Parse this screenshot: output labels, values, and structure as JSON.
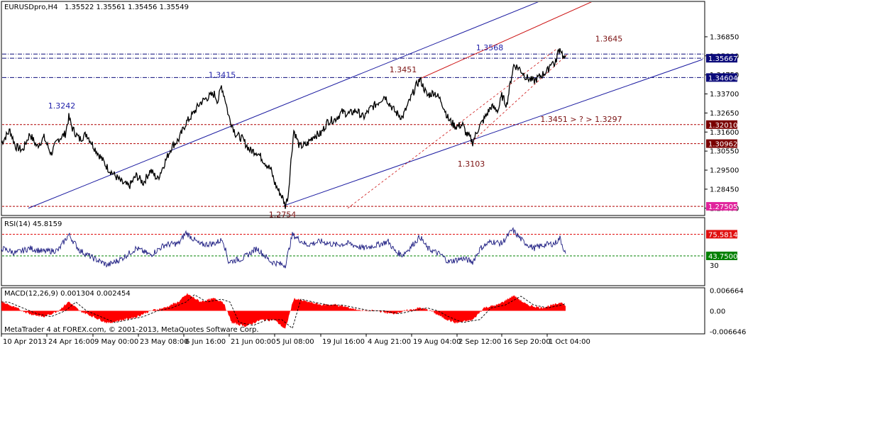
{
  "header": {
    "symbol": "EURUSDpro,H4",
    "quote": "1.35522 1.35561 1.35456 1.35549"
  },
  "footer": {
    "copyright": "MetaTrader 4 at FOREX.com, © 2001-2013, MetaQuotes Software Corp."
  },
  "colors": {
    "price_line": "#000000",
    "trend_blue": "#1a1aa0",
    "trend_red": "#cc1111",
    "hline_red": "#b00000",
    "tag_navy": "#0a0a7a",
    "tag_darkred": "#7a0000",
    "tag_magenta": "#e0249c",
    "tag_red": "#e01010",
    "tag_green": "#008000",
    "macd_fill": "#ff0000"
  },
  "chart_data": [
    {
      "type": "line",
      "name": "main",
      "ylim": [
        1.27,
        1.388
      ],
      "y_ticks": [
        "1.36850",
        "1.35800",
        "1.34750",
        "1.33700",
        "1.32650",
        "1.31600",
        "1.30550",
        "1.29500",
        "1.28450",
        "1.27400"
      ],
      "x_labels": [
        "10 Apr 2013",
        "24 Apr 16:00",
        "9 May 00:00",
        "23 May 08:00",
        "6 Jun 16:00",
        "21 Jun 00:00",
        "5 Jul 08:00",
        "19 Jul 16:00",
        "4 Aug 21:00",
        "19 Aug 04:00",
        "2 Sep 12:00",
        "16 Sep 20:00",
        "1 Oct 04:00"
      ],
      "price_anchors": [
        [
          0,
          1.31
        ],
        [
          12,
          1.317
        ],
        [
          20,
          1.308
        ],
        [
          30,
          1.306
        ],
        [
          40,
          1.315
        ],
        [
          50,
          1.308
        ],
        [
          60,
          1.313
        ],
        [
          70,
          1.304
        ],
        [
          80,
          1.312
        ],
        [
          90,
          1.315
        ],
        [
          95,
          1.3242
        ],
        [
          100,
          1.318
        ],
        [
          110,
          1.312
        ],
        [
          120,
          1.315
        ],
        [
          130,
          1.308
        ],
        [
          140,
          1.302
        ],
        [
          150,
          1.296
        ],
        [
          160,
          1.292
        ],
        [
          170,
          1.288
        ],
        [
          180,
          1.286
        ],
        [
          190,
          1.292
        ],
        [
          200,
          1.288
        ],
        [
          210,
          1.295
        ],
        [
          220,
          1.29
        ],
        [
          230,
          1.299
        ],
        [
          240,
          1.308
        ],
        [
          250,
          1.312
        ],
        [
          260,
          1.321
        ],
        [
          270,
          1.326
        ],
        [
          280,
          1.332
        ],
        [
          290,
          1.335
        ],
        [
          300,
          1.337
        ],
        [
          305,
          1.333
        ],
        [
          310,
          1.3415
        ],
        [
          316,
          1.333
        ],
        [
          320,
          1.325
        ],
        [
          330,
          1.315
        ],
        [
          340,
          1.312
        ],
        [
          350,
          1.306
        ],
        [
          360,
          1.305
        ],
        [
          370,
          1.3
        ],
        [
          380,
          1.295
        ],
        [
          385,
          1.288
        ],
        [
          390,
          1.284
        ],
        [
          396,
          1.28
        ],
        [
          400,
          1.2754
        ],
        [
          404,
          1.281
        ],
        [
          408,
          1.3
        ],
        [
          412,
          1.317
        ],
        [
          420,
          1.308
        ],
        [
          430,
          1.309
        ],
        [
          440,
          1.314
        ],
        [
          450,
          1.315
        ],
        [
          460,
          1.322
        ],
        [
          470,
          1.323
        ],
        [
          480,
          1.327
        ],
        [
          490,
          1.326
        ],
        [
          500,
          1.328
        ],
        [
          510,
          1.324
        ],
        [
          520,
          1.329
        ],
        [
          530,
          1.332
        ],
        [
          540,
          1.336
        ],
        [
          548,
          1.331
        ],
        [
          555,
          1.327
        ],
        [
          565,
          1.324
        ],
        [
          575,
          1.333
        ],
        [
          585,
          1.342
        ],
        [
          590,
          1.3451
        ],
        [
          600,
          1.336
        ],
        [
          610,
          1.338
        ],
        [
          620,
          1.333
        ],
        [
          630,
          1.323
        ],
        [
          640,
          1.319
        ],
        [
          650,
          1.32
        ],
        [
          655,
          1.315
        ],
        [
          660,
          1.313
        ],
        [
          664,
          1.3103
        ],
        [
          672,
          1.318
        ],
        [
          680,
          1.323
        ],
        [
          690,
          1.33
        ],
        [
          700,
          1.328
        ],
        [
          705,
          1.336
        ],
        [
          712,
          1.331
        ],
        [
          718,
          1.345
        ],
        [
          722,
          1.353
        ],
        [
          730,
          1.351
        ],
        [
          740,
          1.346
        ],
        [
          750,
          1.344
        ],
        [
          760,
          1.347
        ],
        [
          770,
          1.35
        ],
        [
          775,
          1.355
        ],
        [
          780,
          1.353
        ],
        [
          785,
          1.361
        ],
        [
          788,
          1.362
        ],
        [
          792,
          1.357
        ],
        [
          795,
          1.3555
        ]
      ],
      "horizontal_lines": [
        {
          "price": 1.35667,
          "tag": "1.35667",
          "style": "navy"
        },
        {
          "price": 1.359,
          "tag": "",
          "style": "navy"
        },
        {
          "price": 1.34604,
          "tag": "1.34604",
          "style": "navy"
        },
        {
          "price": 1.3201,
          "tag": "1.32010",
          "style": "darkred"
        },
        {
          "price": 1.30962,
          "tag": "1.30962",
          "style": "darkred"
        },
        {
          "price": 1.27505,
          "tag": "1.27505",
          "style": "magenta"
        }
      ],
      "annotations": [
        {
          "text": "1.3568",
          "color": "blue",
          "at": [
            690,
            1.361
          ]
        },
        {
          "text": "1.3645",
          "color": "red",
          "at": [
            858,
            1.366
          ]
        },
        {
          "text": "1.3451",
          "color": "red",
          "at": [
            568,
            1.349
          ]
        },
        {
          "text": "1.3415",
          "color": "blue",
          "at": [
            313,
            1.346
          ]
        },
        {
          "text": "1.3242",
          "color": "blue",
          "at": [
            87,
            1.329
          ]
        },
        {
          "text": "1.3451 > ? > 1.3297",
          "color": "red",
          "at": [
            819,
            1.3215
          ]
        },
        {
          "text": "1.3103",
          "color": "red",
          "at": [
            664,
            1.297
          ]
        },
        {
          "text": "1.2754",
          "color": "red",
          "at": [
            398,
            1.269
          ]
        }
      ],
      "trend_lines": [
        {
          "style": "blue",
          "from": [
            40,
            1.274
          ],
          "to": [
            760,
            1.388
          ]
        },
        {
          "style": "blue",
          "from": [
            400,
            1.2754
          ],
          "to": [
            990,
            1.356
          ]
        },
        {
          "style": "red",
          "from": [
            590,
            1.3451
          ],
          "to": [
            835,
            1.388
          ]
        },
        {
          "style": "red-dash",
          "from": [
            490,
            1.274
          ],
          "to": [
            785,
            1.362
          ]
        },
        {
          "style": "red-dash",
          "from": [
            664,
            1.3103
          ],
          "to": [
            800,
            1.359
          ]
        }
      ]
    },
    {
      "type": "line",
      "name": "RSI(14)",
      "label": "RSI(14) 45.8159",
      "ylim": [
        0,
        100
      ],
      "levels": [
        {
          "value": 75.5814,
          "tag": "75.58140",
          "style": "red"
        },
        {
          "value": 43.75,
          "tag": "43.75000",
          "style": "green"
        }
      ],
      "y_ticks": [
        "30"
      ],
      "anchors": [
        [
          0,
          55
        ],
        [
          20,
          48
        ],
        [
          40,
          55
        ],
        [
          60,
          50
        ],
        [
          80,
          52
        ],
        [
          95,
          75
        ],
        [
          110,
          52
        ],
        [
          130,
          40
        ],
        [
          150,
          30
        ],
        [
          170,
          40
        ],
        [
          190,
          55
        ],
        [
          210,
          45
        ],
        [
          230,
          60
        ],
        [
          250,
          62
        ],
        [
          260,
          78
        ],
        [
          280,
          60
        ],
        [
          300,
          62
        ],
        [
          312,
          68
        ],
        [
          320,
          35
        ],
        [
          340,
          40
        ],
        [
          360,
          55
        ],
        [
          380,
          35
        ],
        [
          400,
          30
        ],
        [
          410,
          75
        ],
        [
          430,
          60
        ],
        [
          450,
          65
        ],
        [
          470,
          60
        ],
        [
          490,
          62
        ],
        [
          510,
          55
        ],
        [
          530,
          60
        ],
        [
          545,
          65
        ],
        [
          555,
          50
        ],
        [
          565,
          45
        ],
        [
          575,
          55
        ],
        [
          590,
          72
        ],
        [
          600,
          55
        ],
        [
          620,
          45
        ],
        [
          630,
          35
        ],
        [
          650,
          40
        ],
        [
          664,
          35
        ],
        [
          675,
          55
        ],
        [
          690,
          65
        ],
        [
          705,
          62
        ],
        [
          720,
          82
        ],
        [
          735,
          65
        ],
        [
          750,
          55
        ],
        [
          765,
          60
        ],
        [
          780,
          62
        ],
        [
          787,
          70
        ],
        [
          795,
          46
        ]
      ]
    },
    {
      "type": "area",
      "name": "MACD(12,26,9)",
      "label": "MACD(12,26,9) 0.001304 0.002454",
      "ylim": [
        -0.0075,
        0.0075
      ],
      "y_ticks": [
        "0.006664",
        "0.00",
        "-0.006646"
      ],
      "anchors": [
        [
          0,
          0.003
        ],
        [
          20,
          0.001
        ],
        [
          40,
          -0.001
        ],
        [
          60,
          -0.002
        ],
        [
          80,
          0.0
        ],
        [
          95,
          0.003
        ],
        [
          110,
          0.0
        ],
        [
          130,
          -0.002
        ],
        [
          150,
          -0.004
        ],
        [
          170,
          -0.003
        ],
        [
          190,
          -0.002
        ],
        [
          210,
          0.0
        ],
        [
          230,
          0.001
        ],
        [
          250,
          0.003
        ],
        [
          262,
          0.0055
        ],
        [
          280,
          0.003
        ],
        [
          300,
          0.004
        ],
        [
          312,
          0.003
        ],
        [
          325,
          -0.004
        ],
        [
          345,
          -0.005
        ],
        [
          365,
          -0.003
        ],
        [
          385,
          -0.003
        ],
        [
          400,
          -0.006
        ],
        [
          412,
          0.004
        ],
        [
          430,
          0.003
        ],
        [
          450,
          0.002
        ],
        [
          470,
          0.002
        ],
        [
          490,
          0.001
        ],
        [
          510,
          0.0
        ],
        [
          530,
          0.0
        ],
        [
          550,
          -0.001
        ],
        [
          570,
          0.0
        ],
        [
          590,
          0.001
        ],
        [
          605,
          0.0
        ],
        [
          620,
          -0.002
        ],
        [
          640,
          -0.004
        ],
        [
          664,
          -0.003
        ],
        [
          680,
          0.001
        ],
        [
          700,
          0.002
        ],
        [
          722,
          0.005
        ],
        [
          740,
          0.002
        ],
        [
          760,
          0.001
        ],
        [
          780,
          0.002
        ],
        [
          790,
          0.003
        ],
        [
          795,
          0.0013
        ]
      ]
    }
  ]
}
